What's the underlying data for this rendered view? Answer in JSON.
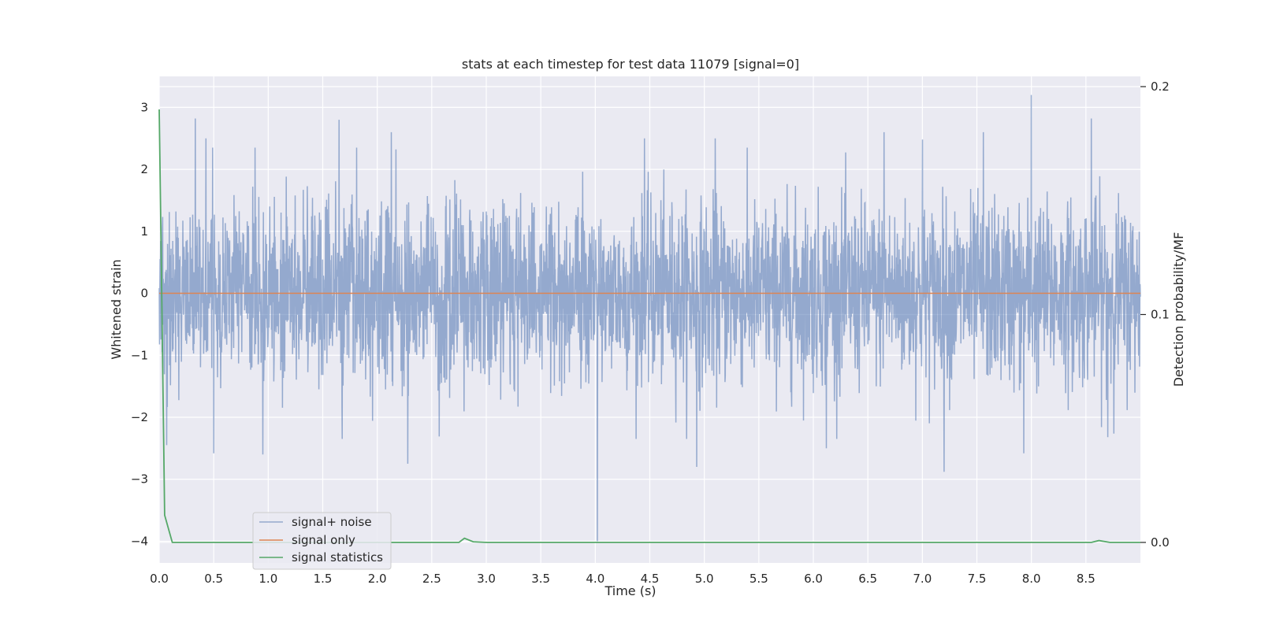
{
  "chart_data": {
    "type": "line",
    "title": "stats at each timestep for test data 11079 [signal=0]",
    "xlabel": "Time (s)",
    "ylabel": "Whitened strain",
    "y2label": "Detection probability/MF",
    "xlim": [
      0.0,
      9.0
    ],
    "ylim": [
      -4.35,
      3.5
    ],
    "y2lim": [
      -0.009,
      0.2045
    ],
    "x_ticks": [
      "0.0",
      "0.5",
      "1.0",
      "1.5",
      "2.0",
      "2.5",
      "3.0",
      "3.5",
      "4.0",
      "4.5",
      "5.0",
      "5.5",
      "6.0",
      "6.5",
      "7.0",
      "7.5",
      "8.0",
      "8.5"
    ],
    "y_ticks": [
      "3",
      "2",
      "1",
      "0",
      "−1",
      "−2",
      "−3",
      "−4"
    ],
    "y2_ticks": [
      "0.2",
      "0.1",
      "0.0"
    ],
    "grid": true,
    "legend_position": "lower-left",
    "series": [
      {
        "name": "signal+ noise",
        "axis": "left",
        "color": "#4c72b0",
        "opacity": 0.55,
        "description_stats": {
          "baseline": 0.0,
          "typical_range": [
            -1.8,
            1.8
          ],
          "max": 3.2,
          "min": -4.0
        },
        "peaks": [
          {
            "x": 0.33,
            "y": 2.82
          },
          {
            "x": 0.43,
            "y": 2.5
          },
          {
            "x": 0.88,
            "y": 2.35
          },
          {
            "x": 1.65,
            "y": 2.8
          },
          {
            "x": 2.13,
            "y": 2.6
          },
          {
            "x": 4.02,
            "y": 2.25
          },
          {
            "x": 4.45,
            "y": 2.5
          },
          {
            "x": 5.1,
            "y": 2.5
          },
          {
            "x": 6.65,
            "y": 2.6
          },
          {
            "x": 7.0,
            "y": 2.48
          },
          {
            "x": 7.56,
            "y": 2.6
          },
          {
            "x": 8.0,
            "y": 3.2
          },
          {
            "x": 8.55,
            "y": 2.82
          }
        ],
        "troughs": [
          {
            "x": 0.07,
            "y": -2.45
          },
          {
            "x": 0.5,
            "y": -2.58
          },
          {
            "x": 0.95,
            "y": -2.6
          },
          {
            "x": 2.28,
            "y": -2.75
          },
          {
            "x": 4.02,
            "y": -4.0
          },
          {
            "x": 4.93,
            "y": -2.8
          },
          {
            "x": 6.12,
            "y": -2.5
          },
          {
            "x": 7.2,
            "y": -2.88
          },
          {
            "x": 7.93,
            "y": -2.58
          },
          {
            "x": 8.7,
            "y": -2.32
          }
        ]
      },
      {
        "name": "signal only",
        "axis": "left",
        "color": "#dd8452",
        "x": [
          0.0,
          9.0
        ],
        "y": [
          0.0,
          0.0
        ]
      },
      {
        "name": "signal statistics",
        "axis": "right",
        "color": "#55a868",
        "x": [
          0.0,
          0.02,
          0.05,
          0.12,
          0.5,
          1.0,
          2.0,
          2.75,
          2.8,
          2.88,
          3.0,
          4.0,
          5.0,
          6.0,
          7.0,
          8.0,
          8.55,
          8.62,
          8.72,
          9.0
        ],
        "y": [
          0.19,
          0.12,
          0.012,
          0.0,
          0.0,
          0.0,
          0.0,
          0.0,
          0.0018,
          0.0003,
          0.0,
          0.0,
          0.0,
          0.0,
          0.0,
          0.0,
          0.0,
          0.0008,
          0.0,
          0.0
        ]
      }
    ]
  }
}
